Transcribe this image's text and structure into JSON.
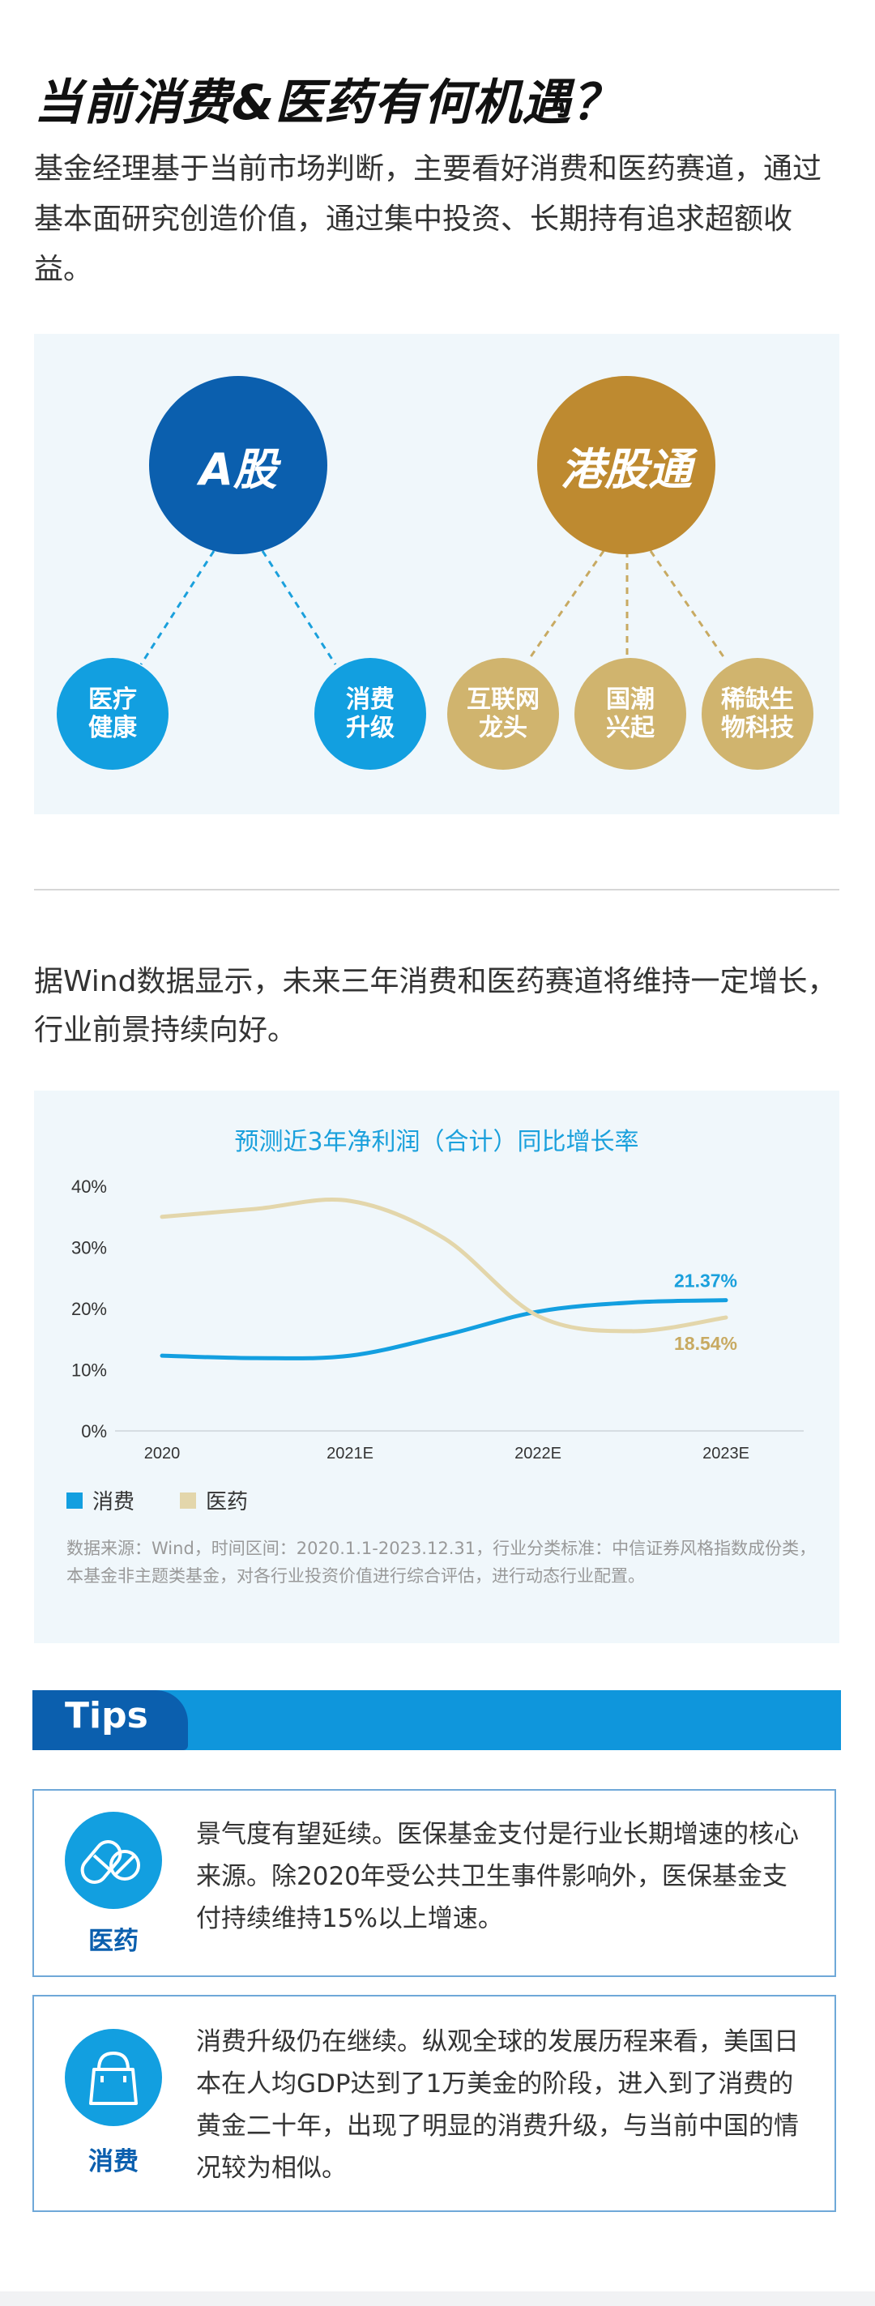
{
  "header": {
    "title": "当前消费&医药有何机遇？",
    "intro": "基金经理基于当前市场判断，主要看好消费和医药赛道，通过基本面研究创造价值，通过集中投资、长期持有追求超额收益。"
  },
  "markets": {
    "a_share": {
      "label": "A股",
      "children": [
        "医疗健康",
        "消费升级"
      ]
    },
    "hk_connect": {
      "label": "港股通",
      "children": [
        "互联网龙头",
        "国潮兴起",
        "稀缺生物科技"
      ]
    }
  },
  "colors": {
    "navy": "#0b5fae",
    "gold": "#be8a30",
    "cyan": "#129fe0",
    "khaki": "#d0b46e",
    "consumer_line": "#139fe0",
    "pharma_line": "#e3d6ab"
  },
  "section2": {
    "paragraph": "据Wind数据显示，未来三年消费和医药赛道将维持一定增长，行业前景持续向好。"
  },
  "chart_data": {
    "type": "line",
    "title": "预测近3年净利润（合计）同比增长率",
    "x": [
      "2020",
      "2021E",
      "2022E",
      "2023E"
    ],
    "y_ticks": [
      "0%",
      "10%",
      "20%",
      "30%",
      "40%"
    ],
    "ylim": [
      0,
      40
    ],
    "series": [
      {
        "name": "消费",
        "color": "#139fe0",
        "points": [
          [
            0,
            12.3
          ],
          [
            0.5,
            11.9
          ],
          [
            1,
            12.3
          ],
          [
            1.5,
            15.6
          ],
          [
            2,
            19.5
          ],
          [
            2.5,
            21.0
          ],
          [
            3,
            21.37
          ]
        ],
        "end_label": "21.37%"
      },
      {
        "name": "医药",
        "color": "#e3d6ab",
        "points": [
          [
            0,
            35.0
          ],
          [
            0.5,
            36.3
          ],
          [
            1,
            37.6
          ],
          [
            1.5,
            31.5
          ],
          [
            2,
            18.8
          ],
          [
            2.5,
            16.3
          ],
          [
            3,
            18.54
          ]
        ],
        "end_label": "18.54%"
      }
    ],
    "legend_position": "bottom-left",
    "grid": false,
    "source": "数据来源：Wind，时间区间：2020.1.1-2023.12.31，行业分类标准：中信证券风格指数成份类，本基金非主题类基金，对各行业投资价值进行综合评估，进行动态行业配置。"
  },
  "tips": {
    "label": "Tips",
    "items": [
      {
        "name": "医药",
        "icon": "pill-capsule-icon",
        "text": "景气度有望延续。医保基金支付是行业长期增速的核心来源。除2020年受公共卫生事件影响外，医保基金支付持续维持15%以上增速。"
      },
      {
        "name": "消费",
        "icon": "shopping-bag-icon",
        "text": "消费升级仍在继续。纵观全球的发展历程来看，美国日本在人均GDP达到了1万美金的阶段，进入到了消费的黄金二十年，出现了明显的消费升级，与当前中国的情况较为相似。"
      }
    ]
  }
}
